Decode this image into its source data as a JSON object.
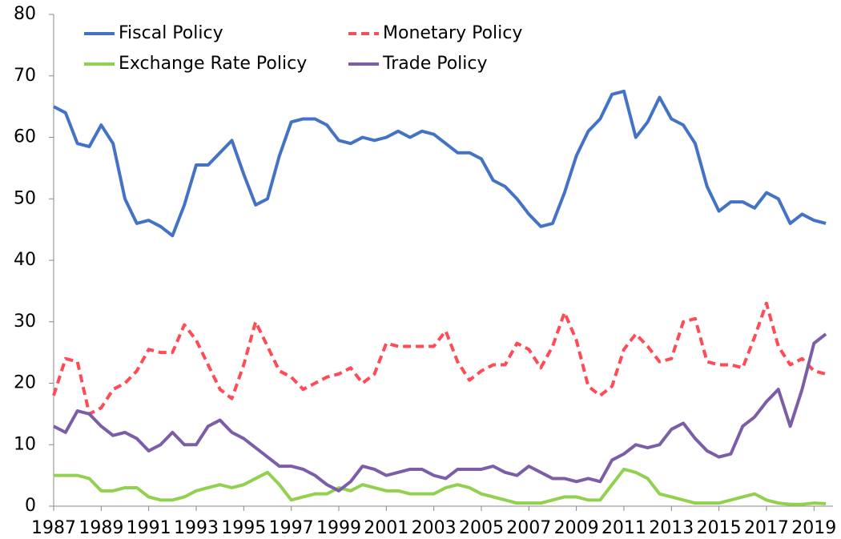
{
  "chart_data": {
    "type": "line",
    "x": [
      1987,
      1987.5,
      1988,
      1988.5,
      1989,
      1989.5,
      1990,
      1990.5,
      1991,
      1991.5,
      1992,
      1992.5,
      1993,
      1993.5,
      1994,
      1994.5,
      1995,
      1995.5,
      1996,
      1996.5,
      1997,
      1997.5,
      1998,
      1998.5,
      1999,
      1999.5,
      2000,
      2000.5,
      2001,
      2001.5,
      2002,
      2002.5,
      2003,
      2003.5,
      2004,
      2004.5,
      2005,
      2005.5,
      2006,
      2006.5,
      2007,
      2007.5,
      2008,
      2008.5,
      2009,
      2009.5,
      2010,
      2010.5,
      2011,
      2011.5,
      2012,
      2012.5,
      2013,
      2013.5,
      2014,
      2014.5,
      2015,
      2015.5,
      2016,
      2016.5,
      2017,
      2017.5,
      2018,
      2018.5,
      2019,
      2019.5
    ],
    "series": [
      {
        "name": "Fiscal Policy",
        "color": "#4472c4",
        "style": "solid",
        "values": [
          65,
          64,
          59,
          58.5,
          62,
          59,
          50,
          46,
          46.5,
          45.5,
          44,
          49,
          55.5,
          55.5,
          57.5,
          59.5,
          54,
          49,
          50,
          57,
          62.5,
          63,
          63,
          62,
          59.5,
          59,
          60,
          59.5,
          60,
          61,
          60,
          61,
          60.5,
          59,
          57.5,
          57.5,
          56.5,
          53,
          52,
          50,
          47.5,
          45.5,
          46,
          51,
          57,
          61,
          63,
          67,
          67.5,
          60,
          62.5,
          66.5,
          63,
          62,
          59,
          52,
          48,
          49.5,
          49.5,
          48.5,
          51,
          50,
          46,
          47.5,
          46.5,
          46
        ]
      },
      {
        "name": "Monetary Policy",
        "color": "#ff4b55",
        "style": "dashed",
        "values": [
          18,
          24,
          23.5,
          15,
          16,
          19,
          20,
          22,
          25.5,
          25,
          25,
          29.5,
          27,
          23,
          19,
          17.5,
          23,
          30,
          26,
          22,
          21,
          19,
          20,
          21,
          21.5,
          22.5,
          20,
          21.5,
          26.5,
          26,
          26,
          26,
          26,
          28.5,
          23.5,
          20.5,
          22,
          23,
          23,
          26.5,
          25.5,
          22.5,
          26,
          31.5,
          27,
          19.5,
          18,
          19.5,
          25.5,
          28,
          26,
          23.5,
          24,
          30,
          30.5,
          23.5,
          23,
          23,
          22.5,
          27.5,
          33,
          26,
          23,
          24,
          22,
          21.5
        ]
      },
      {
        "name": "Exchange Rate Policy",
        "color": "#92d050",
        "style": "solid",
        "values": [
          5,
          5,
          5,
          4.5,
          2.5,
          2.5,
          3,
          3,
          1.5,
          1,
          1,
          1.5,
          2.5,
          3,
          3.5,
          3,
          3.5,
          4.5,
          5.5,
          3.5,
          1,
          1.5,
          2,
          2,
          3,
          2.5,
          3.5,
          3,
          2.5,
          2.5,
          2,
          2,
          2,
          3,
          3.5,
          3,
          2,
          1.5,
          1,
          0.5,
          0.5,
          0.5,
          1,
          1.5,
          1.5,
          1,
          1,
          3.5,
          6,
          5.5,
          4.5,
          2,
          1.5,
          1,
          0.5,
          0.5,
          0.5,
          1,
          1.5,
          2,
          1,
          0.5,
          0.3,
          0.3,
          0.5,
          0.4
        ]
      },
      {
        "name": "Trade Policy",
        "color": "#7b5ea7",
        "style": "solid",
        "values": [
          13,
          12,
          15.5,
          15,
          13,
          11.5,
          12,
          11,
          9,
          10,
          12,
          10,
          10,
          13,
          14,
          12,
          11,
          9.5,
          8,
          6.5,
          6.5,
          6,
          5,
          3.5,
          2.5,
          4,
          6.5,
          6,
          5,
          5.5,
          6,
          6,
          5,
          4.5,
          6,
          6,
          6,
          6.5,
          5.5,
          5,
          6.5,
          5.5,
          4.5,
          4.5,
          4,
          4.5,
          4,
          7.5,
          8.5,
          10,
          9.5,
          10,
          12.5,
          13.5,
          11,
          9,
          8,
          8.5,
          13,
          14.5,
          17,
          19,
          13,
          19,
          26.5,
          28
        ]
      }
    ],
    "xlim": [
      1987,
      2019.8
    ],
    "xticks": [
      1987,
      1989,
      1991,
      1993,
      1995,
      1997,
      1999,
      2001,
      2003,
      2005,
      2007,
      2009,
      2011,
      2013,
      2015,
      2017,
      2019
    ],
    "ylim": [
      0,
      80
    ],
    "yticks": [
      0,
      10,
      20,
      30,
      40,
      50,
      60,
      70,
      80
    ],
    "grid": false,
    "legend": "top"
  }
}
